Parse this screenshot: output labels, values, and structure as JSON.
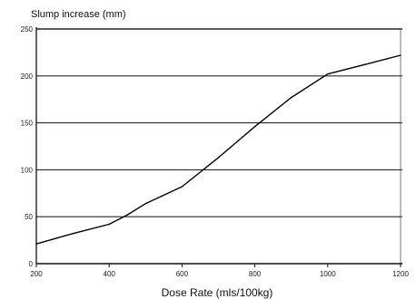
{
  "chart_data": {
    "type": "line",
    "ylabel": "Slump increase (mm)",
    "xlabel": "Dose Rate (mls/100kg)",
    "xlim": [
      200,
      1200
    ],
    "ylim": [
      0,
      250
    ],
    "x_ticks": [
      "200",
      "400",
      "600",
      "800",
      "1000",
      "1200"
    ],
    "y_ticks": [
      "0",
      "50",
      "100",
      "150",
      "200",
      "250"
    ],
    "grid": "horizontal",
    "series": [
      {
        "x": [
          200,
          300,
          400,
          450,
          500,
          600,
          700,
          800,
          900,
          1000,
          1100,
          1200
        ],
        "y": [
          21,
          32,
          42,
          52,
          64,
          82,
          113,
          146,
          177,
          202,
          212,
          222
        ]
      }
    ],
    "line_color": "#000000",
    "grid_color": "#2a2a2a"
  }
}
